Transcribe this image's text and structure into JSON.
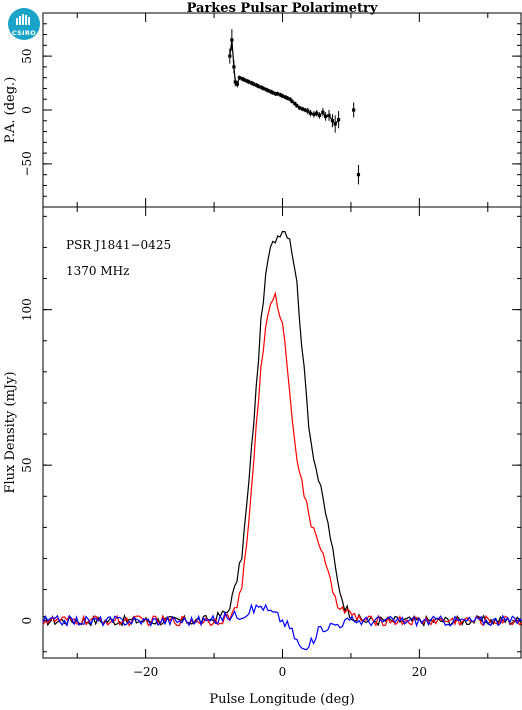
{
  "logo": {
    "text": "CSIRO",
    "color": "#1aa3c8"
  },
  "title": "Parkes Pulsar Polarimetry",
  "chart_data": [
    {
      "type": "scatter",
      "ylabel": "P.A. (deg.)",
      "xlim": [
        -35,
        35
      ],
      "ylim": [
        -90,
        90
      ],
      "yticks": [
        -50,
        0,
        50
      ],
      "ytick_labels": [
        "−50",
        "0",
        "50"
      ],
      "xticks": [
        -20,
        0,
        20
      ],
      "series": [
        {
          "color": "#000000",
          "x": [
            -7.7,
            -7.4,
            -7.1,
            -6.9,
            -6.6,
            -6.3,
            -5.9,
            -5.6,
            -5.2,
            -4.9,
            -4.5,
            -4.2,
            -3.8,
            -3.5,
            -3.1,
            -2.8,
            -2.4,
            -2.1,
            -1.7,
            -1.4,
            -1.0,
            -0.7,
            -0.3,
            0.0,
            0.4,
            0.7,
            1.1,
            1.4,
            1.8,
            2.1,
            2.5,
            2.9,
            3.3,
            3.7,
            4.1,
            4.6,
            5.0,
            5.4,
            5.9,
            6.3,
            6.8,
            7.3,
            7.7,
            8.2,
            10.4,
            11.1
          ],
          "y": [
            50,
            65,
            40,
            26,
            24,
            30,
            29,
            28,
            27,
            26,
            25,
            24,
            23,
            22,
            21,
            20,
            19,
            18,
            17,
            16,
            15,
            15,
            14,
            13,
            12,
            11,
            10,
            8,
            6,
            4,
            2,
            1,
            0,
            -1,
            -3,
            -4,
            -3,
            -5,
            -2,
            -6,
            -5,
            -10,
            -13,
            -9,
            0,
            -60
          ],
          "err": [
            7,
            10,
            6,
            4,
            3,
            2,
            2,
            2,
            2,
            2,
            2,
            2,
            2,
            2,
            2,
            2,
            2,
            2,
            2,
            2,
            2,
            2,
            2,
            2,
            2,
            2,
            2,
            2,
            2,
            2,
            2,
            2,
            2,
            3,
            3,
            3,
            3,
            3,
            4,
            4,
            5,
            6,
            8,
            8,
            7,
            9
          ]
        }
      ]
    },
    {
      "type": "line",
      "xlabel": "Pulse Longitude (deg)",
      "ylabel": "Flux Density (mJy)",
      "xlim": [
        -35,
        35
      ],
      "ylim": [
        -12,
        133
      ],
      "xticks": [
        -20,
        0,
        20
      ],
      "xtick_labels": [
        "−20",
        "0",
        "20"
      ],
      "yticks": [
        0,
        50,
        100
      ],
      "ytick_labels": [
        "0",
        "50",
        "100"
      ],
      "annotations": [
        "PSR J1841−0425",
        "1370 MHz"
      ],
      "series": [
        {
          "color": "#000000",
          "x": [
            -35,
            -12,
            -10,
            -8,
            -7,
            -6,
            -5,
            -4,
            -3,
            -2,
            -1,
            0,
            1,
            2,
            3,
            4,
            5,
            6,
            7,
            8,
            9,
            10,
            11,
            12,
            13,
            35
          ],
          "y": [
            0,
            0,
            0.5,
            3,
            10,
            20,
            42,
            70,
            100,
            118,
            123,
            126,
            124,
            111,
            84,
            60,
            48,
            38,
            27,
            13,
            5,
            2,
            0.5,
            0,
            0,
            0
          ]
        },
        {
          "color": "#ff0000",
          "x": [
            -35,
            -10,
            -8,
            -7,
            -6,
            -5,
            -4,
            -3,
            -2,
            -1,
            0,
            1,
            2,
            3,
            4,
            5,
            6,
            7,
            8,
            9,
            10,
            11,
            12,
            35
          ],
          "y": [
            0,
            0,
            1,
            3,
            9,
            30,
            58,
            85,
            100,
            104,
            96,
            75,
            54,
            42,
            32,
            28,
            20,
            12,
            6,
            3,
            2,
            1,
            0,
            0
          ]
        },
        {
          "color": "#0000ff",
          "x": [
            -35,
            -10,
            -8,
            -6,
            -4,
            -3,
            -2,
            -1,
            0,
            1,
            2,
            3,
            4,
            5,
            6,
            8,
            10,
            12,
            14,
            35
          ],
          "y": [
            0,
            0,
            1.5,
            2,
            4,
            5,
            3,
            2,
            0,
            -2,
            -6,
            -10,
            -8,
            -4,
            -2,
            -1,
            0,
            0,
            0,
            0
          ]
        }
      ]
    }
  ]
}
